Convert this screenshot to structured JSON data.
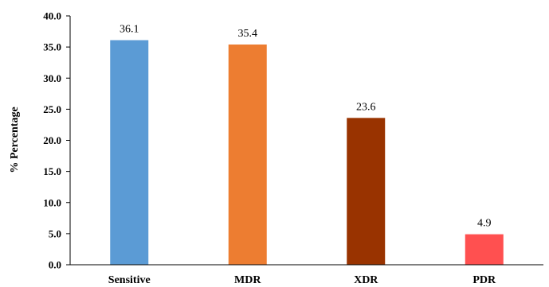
{
  "chart_data": {
    "type": "bar",
    "title": "",
    "xlabel": "",
    "ylabel": "% Percentage",
    "ylim": [
      0,
      40
    ],
    "yticks": [
      "0.0",
      "5.0",
      "10.0",
      "15.0",
      "20.0",
      "25.0",
      "30.0",
      "35.0",
      "40.0"
    ],
    "grid": false,
    "legend": "none",
    "categories": [
      "Sensitive",
      "MDR",
      "XDR",
      "PDR"
    ],
    "values": [
      36.1,
      35.4,
      23.6,
      4.9
    ],
    "data_labels": [
      "36.1",
      "35.4",
      "23.6",
      "4.9"
    ],
    "colors": [
      "#5b9bd5",
      "#ed7d31",
      "#993300",
      "#ff5050"
    ]
  }
}
